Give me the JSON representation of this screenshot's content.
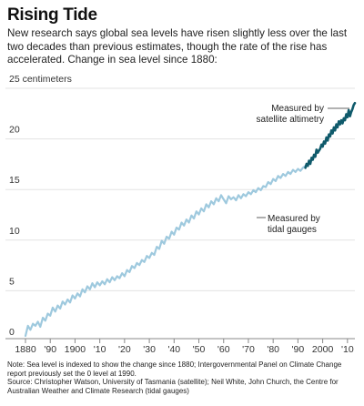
{
  "title": "Rising Tide",
  "subtitle": "New research says global sea levels have risen slightly less over the last two decades than previous estimates, though the rate of the rise has accelerated. Change in sea level since 1880:",
  "footer": {
    "note": "Note: Sea level is indexed to show the change since 1880; Intergovernmental Panel on Climate Change report previously set the 0 level at 1990.",
    "source": "Source: Christopher Watson, University of Tasmania (satellite); Neil White, John Church, the Centre for Australian Weather and Climate Research (tidal gauges)"
  },
  "colors": {
    "tidal": "#9ec9de",
    "satellite": "#0f5a6b",
    "grid": "#e3e3e3",
    "axis": "#888888"
  },
  "chart_data": {
    "type": "line",
    "ylabel": "centimeters",
    "ylim": [
      0,
      25
    ],
    "xlim": [
      1880,
      2013
    ],
    "yticks": [
      {
        "value": 0,
        "label": "0"
      },
      {
        "value": 5,
        "label": "5"
      },
      {
        "value": 10,
        "label": "10"
      },
      {
        "value": 15,
        "label": "15"
      },
      {
        "value": 20,
        "label": "20"
      },
      {
        "value": 25,
        "label": "25 centimeters"
      }
    ],
    "xticks": [
      {
        "value": 1880,
        "label": "1880"
      },
      {
        "value": 1890,
        "label": "'90"
      },
      {
        "value": 1900,
        "label": "1900"
      },
      {
        "value": 1910,
        "label": "'10"
      },
      {
        "value": 1920,
        "label": "'20"
      },
      {
        "value": 1930,
        "label": "'30"
      },
      {
        "value": 1940,
        "label": "'40"
      },
      {
        "value": 1950,
        "label": "'50"
      },
      {
        "value": 1960,
        "label": "'60"
      },
      {
        "value": 1970,
        "label": "'70"
      },
      {
        "value": 1980,
        "label": "'80"
      },
      {
        "value": 1990,
        "label": "'90"
      },
      {
        "value": 2000,
        "label": "2000"
      },
      {
        "value": 2010,
        "label": "'10"
      }
    ],
    "series": [
      {
        "name": "Measured by tidal gauges",
        "x": [
          1880,
          1881,
          1882,
          1883,
          1884,
          1885,
          1886,
          1887,
          1888,
          1889,
          1890,
          1891,
          1892,
          1893,
          1894,
          1895,
          1896,
          1897,
          1898,
          1899,
          1900,
          1901,
          1902,
          1903,
          1904,
          1905,
          1906,
          1907,
          1908,
          1909,
          1910,
          1911,
          1912,
          1913,
          1914,
          1915,
          1916,
          1917,
          1918,
          1919,
          1920,
          1921,
          1922,
          1923,
          1924,
          1925,
          1926,
          1927,
          1928,
          1929,
          1930,
          1931,
          1932,
          1933,
          1934,
          1935,
          1936,
          1937,
          1938,
          1939,
          1940,
          1941,
          1942,
          1943,
          1944,
          1945,
          1946,
          1947,
          1948,
          1949,
          1950,
          1951,
          1952,
          1953,
          1954,
          1955,
          1956,
          1957,
          1958,
          1959,
          1960,
          1961,
          1962,
          1963,
          1964,
          1965,
          1966,
          1967,
          1968,
          1969,
          1970,
          1971,
          1972,
          1973,
          1974,
          1975,
          1976,
          1977,
          1978,
          1979,
          1980,
          1981,
          1982,
          1983,
          1984,
          1985,
          1986,
          1987,
          1988,
          1989,
          1990,
          1991,
          1992,
          1993
        ],
        "y": [
          0.0,
          1.0,
          0.6,
          1.2,
          1.0,
          1.4,
          0.9,
          1.8,
          1.5,
          2.2,
          2.0,
          2.8,
          2.4,
          3.0,
          2.7,
          3.4,
          3.1,
          3.6,
          3.3,
          4.0,
          3.7,
          4.2,
          3.9,
          4.6,
          4.3,
          4.9,
          4.6,
          5.2,
          4.8,
          5.3,
          5.0,
          5.4,
          5.1,
          5.6,
          5.3,
          5.8,
          5.5,
          5.9,
          5.7,
          6.2,
          5.9,
          6.5,
          6.3,
          6.9,
          6.7,
          7.2,
          7.0,
          7.5,
          7.3,
          7.9,
          7.7,
          8.2,
          8.0,
          8.8,
          8.6,
          9.4,
          9.1,
          9.8,
          9.6,
          10.3,
          10.0,
          10.7,
          10.5,
          11.2,
          10.9,
          11.5,
          11.2,
          11.9,
          11.6,
          12.3,
          12.0,
          12.6,
          12.3,
          13.0,
          12.7,
          13.3,
          13.0,
          13.6,
          13.3,
          13.9,
          13.5,
          13.1,
          13.8,
          13.5,
          13.7,
          13.4,
          13.9,
          13.6,
          14.0,
          13.8,
          14.2,
          14.0,
          14.4,
          14.2,
          14.6,
          14.4,
          14.8,
          14.7,
          15.2,
          15.0,
          15.5,
          15.3,
          15.8,
          15.6,
          16.0,
          15.8,
          16.2,
          16.0,
          16.4,
          16.2,
          16.5,
          16.3,
          16.6,
          16.8
        ]
      },
      {
        "name": "Measured by satellite altimetry",
        "x": [
          1993.0,
          1993.5,
          1994.0,
          1994.5,
          1995.0,
          1995.5,
          1996.0,
          1996.5,
          1997.0,
          1997.5,
          1998.0,
          1998.5,
          1999.0,
          1999.5,
          2000.0,
          2000.5,
          2001.0,
          2001.5,
          2002.0,
          2002.5,
          2003.0,
          2003.5,
          2004.0,
          2004.5,
          2005.0,
          2005.5,
          2006.0,
          2006.5,
          2007.0,
          2007.5,
          2008.0,
          2008.5,
          2009.0,
          2009.5,
          2010.0,
          2010.5,
          2011.0,
          2011.5,
          2012.0,
          2012.5,
          2013.0
        ],
        "y": [
          16.6,
          17.0,
          16.8,
          17.3,
          17.0,
          17.6,
          17.4,
          17.9,
          17.7,
          18.4,
          18.1,
          18.3,
          18.5,
          18.9,
          18.7,
          19.2,
          19.0,
          19.6,
          19.3,
          19.9,
          19.7,
          20.3,
          20.0,
          20.6,
          20.3,
          20.9,
          20.6,
          21.2,
          20.9,
          21.3,
          21.0,
          21.5,
          21.3,
          21.9,
          21.6,
          22.3,
          21.7,
          22.1,
          22.4,
          22.8,
          23.0
        ]
      }
    ],
    "annotations": {
      "tidal_lines": [
        "Measured by",
        "tidal gauges"
      ],
      "satellite_lines": [
        "Measured by",
        "satellite altimetry"
      ]
    }
  }
}
